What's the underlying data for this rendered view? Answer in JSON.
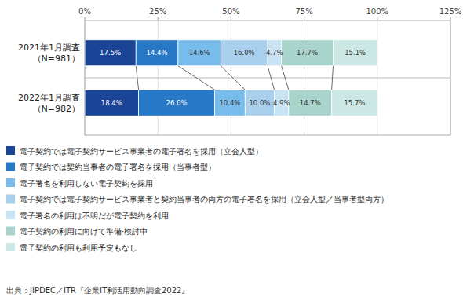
{
  "chart_data": {
    "type": "bar",
    "orientation": "horizontal",
    "stacked": true,
    "data_labels": true,
    "grid": true,
    "legend": "bottom",
    "categories": [
      "2021年1月調査\n（N=981）",
      "2022年1月調査\n（N=982）"
    ],
    "series": [
      {
        "name": "電子契約では電子契約サービス事業者の電子署名を採用（立会人型）",
        "color": "#1a4496",
        "values": [
          17.5,
          18.4
        ],
        "value_labels": [
          "17.5%",
          "18.4%"
        ]
      },
      {
        "name": "電子契約では契約当事者の電子署名を採用（当事者型）",
        "color": "#2878c8",
        "values": [
          14.4,
          26.0
        ],
        "value_labels": [
          "14.4%",
          "26.0%"
        ]
      },
      {
        "name": "電子署名を利用しない電子契約を採用",
        "color": "#78bcec",
        "values": [
          14.6,
          10.4
        ],
        "value_labels": [
          "14.6%",
          "10.4%"
        ]
      },
      {
        "name": "電子契約では電子契約サービス事業者と契約当事者の両方の電子署名を採用（立会人型／当事者型両方）",
        "color": "#a8d0ec",
        "values": [
          16.0,
          10.0
        ],
        "value_labels": [
          "16.0%",
          "10.0%"
        ]
      },
      {
        "name": "電子署名の利用は不明だが電子契約を利用",
        "color": "#c8e4f4",
        "values": [
          4.7,
          4.9
        ],
        "value_labels": [
          "4.7%",
          "4.9%"
        ]
      },
      {
        "name": "電子契約の利用に向けて準備·検討中",
        "color": "#a8d4cc",
        "values": [
          17.7,
          14.7
        ],
        "value_labels": [
          "17.7%",
          "14.7%"
        ]
      },
      {
        "name": "電子契約の利用も利用予定もなし",
        "color": "#cce8e4",
        "values": [
          15.1,
          15.7
        ],
        "value_labels": [
          "15.1%",
          "15.7%"
        ]
      }
    ],
    "xlim": [
      0,
      125
    ],
    "xticks": [
      {
        "value": 0,
        "label": "0%"
      },
      {
        "value": 25,
        "label": "25%"
      },
      {
        "value": 50,
        "label": "50%"
      },
      {
        "value": 75,
        "label": "75%"
      },
      {
        "value": 100,
        "label": "100%"
      },
      {
        "value": 125,
        "label": "125%"
      }
    ],
    "source": "出典：JIPDEC／ITR『企業IT利活用動向調査2022』"
  }
}
